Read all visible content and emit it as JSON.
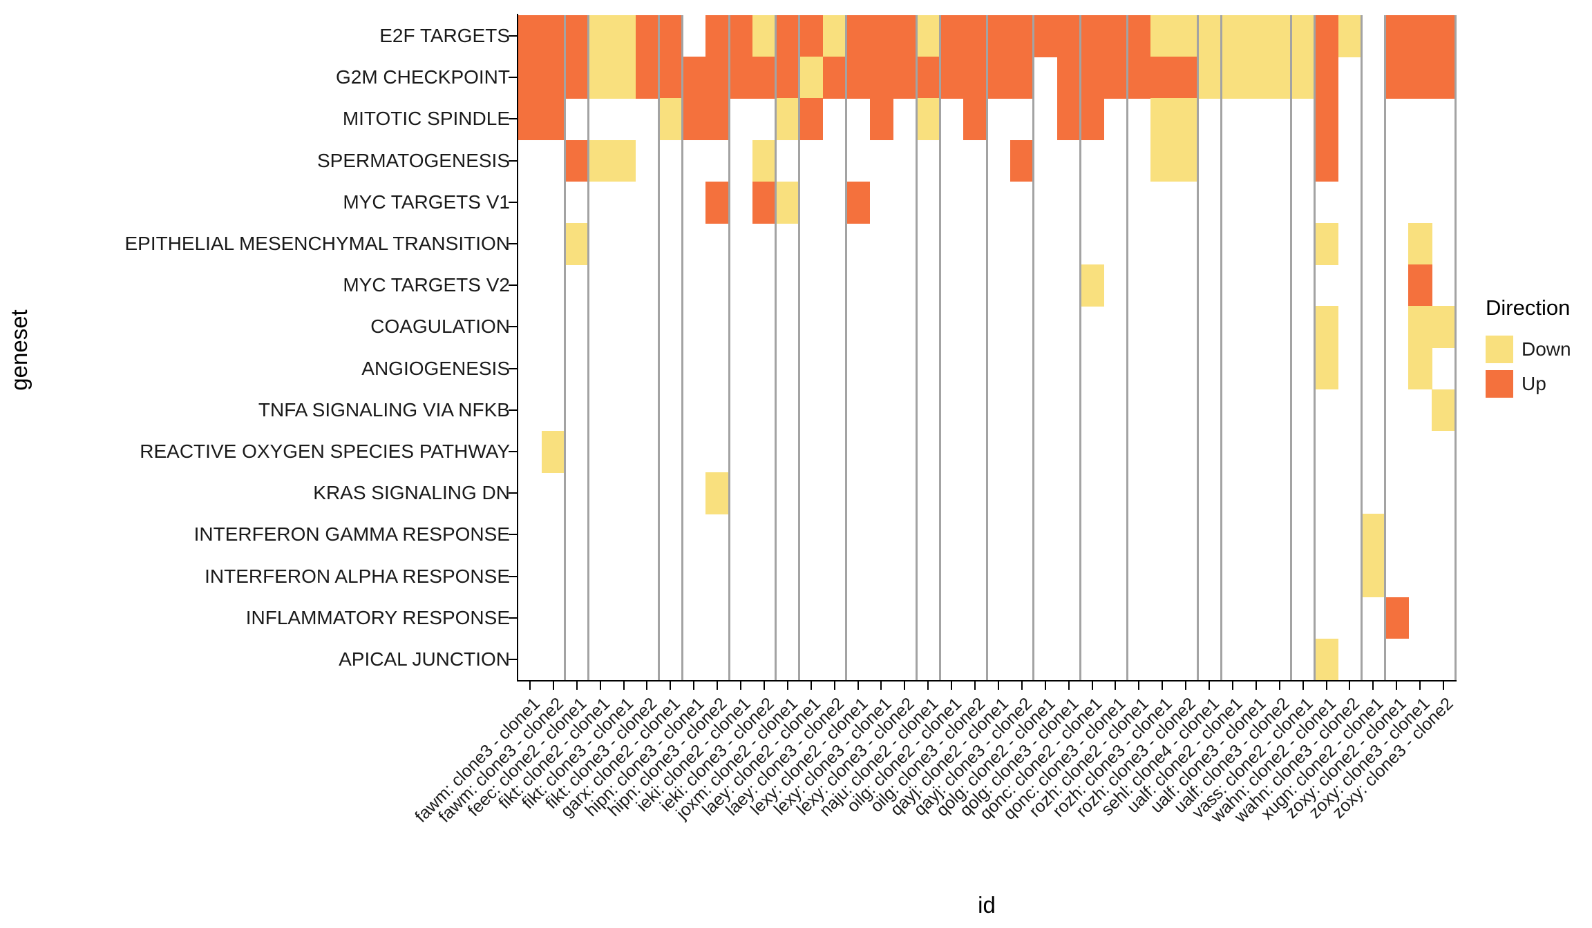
{
  "figure": {
    "x_axis_title": "id",
    "y_axis_title": "geneset"
  },
  "legend": {
    "title": "Direction",
    "items": [
      {
        "label": "Down",
        "color": "#F9E07E",
        "direction": "Down"
      },
      {
        "label": "Up",
        "color": "#F4713D",
        "direction": "Up"
      }
    ]
  },
  "chart_data": {
    "type": "heatmap",
    "title": "",
    "xlabel": "id",
    "ylabel": "geneset",
    "legend_title": "Direction",
    "legend_position": "right",
    "direction_colors": {
      "Down": "#F9E07E",
      "Up": "#F4713D"
    },
    "separator_color": "#a3a3a3",
    "matrix_legend": {
      "D": "Down",
      "U": "Up",
      "": "none"
    },
    "x_categories": [
      "fawm: clone3 - clone1",
      "fawm: clone3 - clone2",
      "feec: clone2 - clone1",
      "fikt: clone2 - clone1",
      "fikt: clone3 - clone1",
      "fikt: clone3 - clone2",
      "garx: clone2 - clone1",
      "hipn: clone3 - clone1",
      "hipn: clone3 - clone2",
      "ieki: clone2 - clone1",
      "ieki: clone3 - clone2",
      "joxm: clone2 - clone1",
      "laey: clone2 - clone1",
      "laey: clone3 - clone2",
      "lexy: clone2 - clone1",
      "lexy: clone3 - clone1",
      "lexy: clone3 - clone2",
      "naju: clone2 - clone1",
      "oilg: clone2 - clone1",
      "oilg: clone3 - clone2",
      "qayj: clone2 - clone1",
      "qayj: clone3 - clone2",
      "qolg: clone2 - clone1",
      "qolg: clone3 - clone1",
      "qonc: clone2 - clone1",
      "qonc: clone3 - clone1",
      "rozh: clone2 - clone1",
      "rozh: clone3 - clone1",
      "rozh: clone3 - clone2",
      "sehl: clone4 - clone1",
      "ualf: clone2 - clone1",
      "ualf: clone3 - clone1",
      "ualf: clone3 - clone2",
      "vass: clone2 - clone1",
      "wahn: clone2 - clone1",
      "wahn: clone3 - clone2",
      "xugn: clone2 - clone1",
      "zoxy: clone2 - clone1",
      "zoxy: clone3 - clone1",
      "zoxy: clone3 - clone2"
    ],
    "y_categories": [
      "E2F TARGETS",
      "G2M CHECKPOINT",
      "MITOTIC SPINDLE",
      "SPERMATOGENESIS",
      "MYC TARGETS V1",
      "EPITHELIAL MESENCHYMAL TRANSITION",
      "MYC TARGETS V2",
      "COAGULATION",
      "ANGIOGENESIS",
      "TNFA SIGNALING VIA NFKB",
      "REACTIVE OXYGEN SPECIES PATHWAY",
      "KRAS SIGNALING DN",
      "INTERFERON GAMMA RESPONSE",
      "INTERFERON ALPHA RESPONSE",
      "INFLAMMATORY RESPONSE",
      "APICAL JUNCTION"
    ],
    "matrix": [
      [
        "U",
        "U",
        "U",
        "D",
        "D",
        "U",
        "U",
        "",
        "U",
        "U",
        "D",
        "U",
        "U",
        "D",
        "U",
        "U",
        "U",
        "D",
        "U",
        "U",
        "U",
        "U",
        "U",
        "U",
        "U",
        "U",
        "U",
        "D",
        "D",
        "D",
        "D",
        "D",
        "D",
        "D",
        "U",
        "D",
        "",
        "U",
        "U",
        "U"
      ],
      [
        "U",
        "U",
        "U",
        "D",
        "D",
        "U",
        "U",
        "U",
        "U",
        "U",
        "U",
        "U",
        "D",
        "U",
        "U",
        "U",
        "U",
        "U",
        "U",
        "U",
        "U",
        "U",
        "",
        "U",
        "U",
        "U",
        "U",
        "U",
        "U",
        "D",
        "D",
        "D",
        "D",
        "D",
        "U",
        "",
        "",
        "U",
        "U",
        "U"
      ],
      [
        "U",
        "U",
        "",
        "",
        "",
        "",
        "D",
        "U",
        "U",
        "",
        "",
        "D",
        "U",
        "",
        "",
        "U",
        "",
        "D",
        "",
        "U",
        "",
        "",
        "",
        "U",
        "U",
        "",
        "",
        "D",
        "D",
        "",
        "",
        "",
        "",
        "",
        "U",
        "",
        "",
        "",
        "",
        ""
      ],
      [
        "",
        "",
        "U",
        "D",
        "D",
        "",
        "",
        "",
        "",
        "",
        "D",
        "",
        "",
        "",
        "",
        "",
        "",
        "",
        "",
        "",
        "",
        "U",
        "",
        "",
        "",
        "",
        "",
        "D",
        "D",
        "",
        "",
        "",
        "",
        "",
        "U",
        "",
        "",
        "",
        "",
        ""
      ],
      [
        "",
        "",
        "",
        "",
        "",
        "",
        "",
        "",
        "U",
        "",
        "U",
        "D",
        "",
        "",
        "U",
        "",
        "",
        "",
        "",
        "",
        "",
        "",
        "",
        "",
        "",
        "",
        "",
        "",
        "",
        "",
        "",
        "",
        "",
        "",
        "",
        "",
        "",
        "",
        "",
        ""
      ],
      [
        "",
        "",
        "D",
        "",
        "",
        "",
        "",
        "",
        "",
        "",
        "",
        "",
        "",
        "",
        "",
        "",
        "",
        "",
        "",
        "",
        "",
        "",
        "",
        "",
        "",
        "",
        "",
        "",
        "",
        "",
        "",
        "",
        "",
        "",
        "D",
        "",
        "",
        "",
        "D",
        ""
      ],
      [
        "",
        "",
        "",
        "",
        "",
        "",
        "",
        "",
        "",
        "",
        "",
        "",
        "",
        "",
        "",
        "",
        "",
        "",
        "",
        "",
        "",
        "",
        "",
        "",
        "D",
        "",
        "",
        "",
        "",
        "",
        "",
        "",
        "",
        "",
        "",
        "",
        "",
        "",
        "U",
        ""
      ],
      [
        "",
        "",
        "",
        "",
        "",
        "",
        "",
        "",
        "",
        "",
        "",
        "",
        "",
        "",
        "",
        "",
        "",
        "",
        "",
        "",
        "",
        "",
        "",
        "",
        "",
        "",
        "",
        "",
        "",
        "",
        "",
        "",
        "",
        "",
        "D",
        "",
        "",
        "",
        "D",
        "D"
      ],
      [
        "",
        "",
        "",
        "",
        "",
        "",
        "",
        "",
        "",
        "",
        "",
        "",
        "",
        "",
        "",
        "",
        "",
        "",
        "",
        "",
        "",
        "",
        "",
        "",
        "",
        "",
        "",
        "",
        "",
        "",
        "",
        "",
        "",
        "",
        "D",
        "",
        "",
        "",
        "D",
        ""
      ],
      [
        "",
        "",
        "",
        "",
        "",
        "",
        "",
        "",
        "",
        "",
        "",
        "",
        "",
        "",
        "",
        "",
        "",
        "",
        "",
        "",
        "",
        "",
        "",
        "",
        "",
        "",
        "",
        "",
        "",
        "",
        "",
        "",
        "",
        "",
        "",
        "",
        "",
        "",
        "",
        "D"
      ],
      [
        "",
        "D",
        "",
        "",
        "",
        "",
        "",
        "",
        "",
        "",
        "",
        "",
        "",
        "",
        "",
        "",
        "",
        "",
        "",
        "",
        "",
        "",
        "",
        "",
        "",
        "",
        "",
        "",
        "",
        "",
        "",
        "",
        "",
        "",
        "",
        "",
        "",
        "",
        "",
        ""
      ],
      [
        "",
        "",
        "",
        "",
        "",
        "",
        "",
        "",
        "D",
        "",
        "",
        "",
        "",
        "",
        "",
        "",
        "",
        "",
        "",
        "",
        "",
        "",
        "",
        "",
        "",
        "",
        "",
        "",
        "",
        "",
        "",
        "",
        "",
        "",
        "",
        "",
        "",
        "",
        "",
        ""
      ],
      [
        "",
        "",
        "",
        "",
        "",
        "",
        "",
        "",
        "",
        "",
        "",
        "",
        "",
        "",
        "",
        "",
        "",
        "",
        "",
        "",
        "",
        "",
        "",
        "",
        "",
        "",
        "",
        "",
        "",
        "",
        "",
        "",
        "",
        "",
        "",
        "",
        "D",
        "",
        "",
        ""
      ],
      [
        "",
        "",
        "",
        "",
        "",
        "",
        "",
        "",
        "",
        "",
        "",
        "",
        "",
        "",
        "",
        "",
        "",
        "",
        "",
        "",
        "",
        "",
        "",
        "",
        "",
        "",
        "",
        "",
        "",
        "",
        "",
        "",
        "",
        "",
        "",
        "",
        "D",
        "",
        "",
        ""
      ],
      [
        "",
        "",
        "",
        "",
        "",
        "",
        "",
        "",
        "",
        "",
        "",
        "",
        "",
        "",
        "",
        "",
        "",
        "",
        "",
        "",
        "",
        "",
        "",
        "",
        "",
        "",
        "",
        "",
        "",
        "",
        "",
        "",
        "",
        "",
        "",
        "",
        "",
        "U",
        "",
        ""
      ],
      [
        "",
        "",
        "",
        "",
        "",
        "",
        "",
        "",
        "",
        "",
        "",
        "",
        "",
        "",
        "",
        "",
        "",
        "",
        "",
        "",
        "",
        "",
        "",
        "",
        "",
        "",
        "",
        "",
        "",
        "",
        "",
        "",
        "",
        "",
        "D",
        "",
        "",
        "",
        "",
        ""
      ]
    ],
    "group_separators_after_column": [
      2,
      3,
      6,
      7,
      9,
      11,
      12,
      14,
      17,
      18,
      20,
      22,
      24,
      26,
      29,
      30,
      33,
      34,
      36,
      37,
      40
    ]
  }
}
